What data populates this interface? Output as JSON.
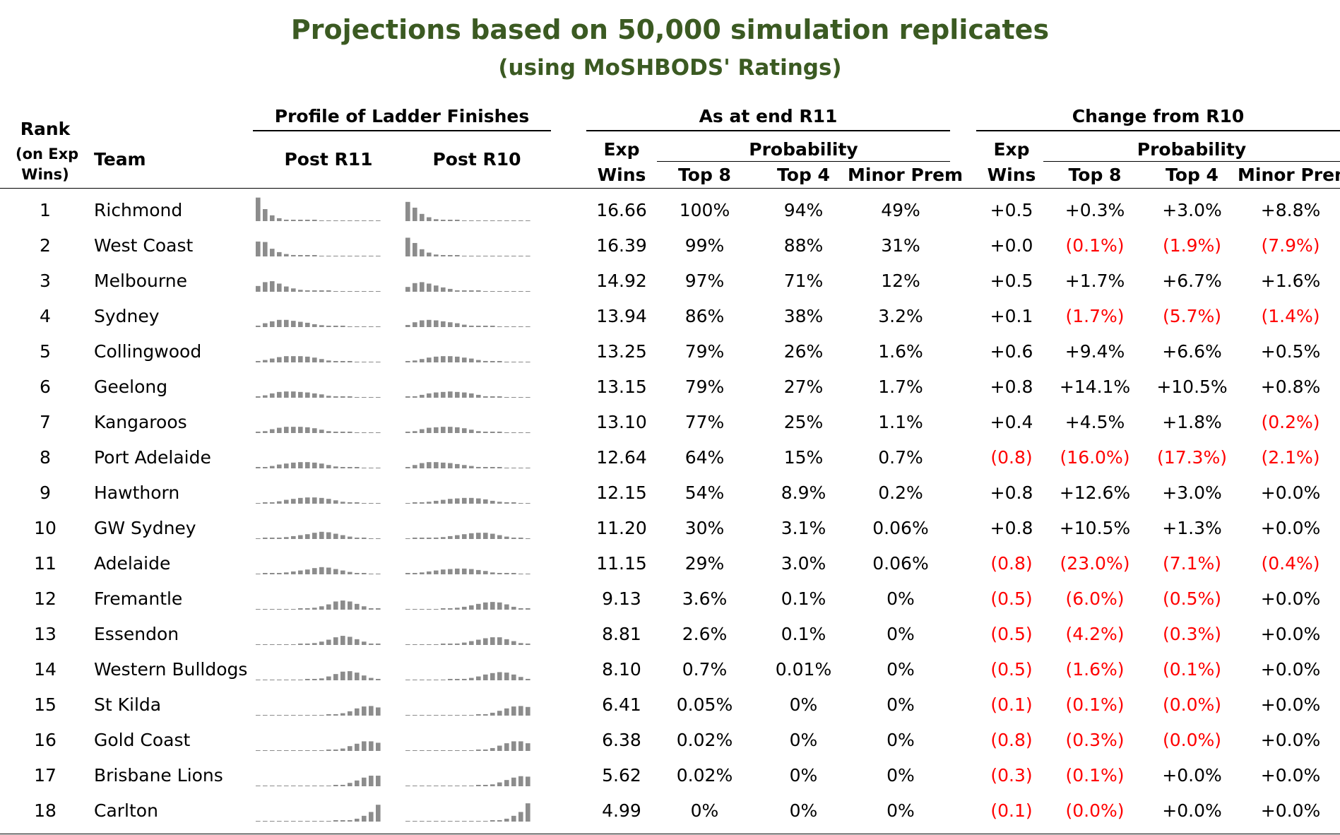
{
  "title": "Projections based on 50,000 simulation replicates",
  "subtitle": "(using MoSHBODS' Ratings)",
  "headers": {
    "rank": "Rank",
    "rank_sub1": "(on Exp",
    "rank_sub2": "Wins)",
    "team": "Team",
    "profile_group": "Profile of Ladder Finishes",
    "post_r11": "Post R11",
    "post_r10": "Post R10",
    "as_at_group": "As at end R11",
    "change_group": "Change from R10",
    "exp": "Exp",
    "wins": "Wins",
    "probability": "Probability",
    "top8": "Top 8",
    "top4": "Top 4",
    "minor_prem": "Minor Prem"
  },
  "colors": {
    "title": "#3b5a22",
    "negative": "#ff0000",
    "spark_bar": "#8c8c8c"
  },
  "chart_data": {
    "type": "table",
    "columns": [
      "Rank",
      "Team",
      "Exp Wins",
      "Top 8",
      "Top 4",
      "Minor Prem",
      "Change Exp Wins",
      "Change Top 8",
      "Change Top 4",
      "Change Minor Prem"
    ],
    "rows": [
      {
        "rank": "1",
        "team": "Richmond",
        "exp_wins": "16.66",
        "top8": "100%",
        "top4": "94%",
        "minor": "49%",
        "d_wins": "+0.5",
        "d_top8": "+0.3%",
        "d_top4": "+3.0%",
        "d_minor": "+8.8%"
      },
      {
        "rank": "2",
        "team": "West Coast",
        "exp_wins": "16.39",
        "top8": "99%",
        "top4": "88%",
        "minor": "31%",
        "d_wins": "+0.0",
        "d_top8": "(0.1%)",
        "d_top4": "(1.9%)",
        "d_minor": "(7.9%)"
      },
      {
        "rank": "3",
        "team": "Melbourne",
        "exp_wins": "14.92",
        "top8": "97%",
        "top4": "71%",
        "minor": "12%",
        "d_wins": "+0.5",
        "d_top8": "+1.7%",
        "d_top4": "+6.7%",
        "d_minor": "+1.6%"
      },
      {
        "rank": "4",
        "team": "Sydney",
        "exp_wins": "13.94",
        "top8": "86%",
        "top4": "38%",
        "minor": "3.2%",
        "d_wins": "+0.1",
        "d_top8": "(1.7%)",
        "d_top4": "(5.7%)",
        "d_minor": "(1.4%)"
      },
      {
        "rank": "5",
        "team": "Collingwood",
        "exp_wins": "13.25",
        "top8": "79%",
        "top4": "26%",
        "minor": "1.6%",
        "d_wins": "+0.6",
        "d_top8": "+9.4%",
        "d_top4": "+6.6%",
        "d_minor": "+0.5%"
      },
      {
        "rank": "6",
        "team": "Geelong",
        "exp_wins": "13.15",
        "top8": "79%",
        "top4": "27%",
        "minor": "1.7%",
        "d_wins": "+0.8",
        "d_top8": "+14.1%",
        "d_top4": "+10.5%",
        "d_minor": "+0.8%"
      },
      {
        "rank": "7",
        "team": "Kangaroos",
        "exp_wins": "13.10",
        "top8": "77%",
        "top4": "25%",
        "minor": "1.1%",
        "d_wins": "+0.4",
        "d_top8": "+4.5%",
        "d_top4": "+1.8%",
        "d_minor": "(0.2%)"
      },
      {
        "rank": "8",
        "team": "Port Adelaide",
        "exp_wins": "12.64",
        "top8": "64%",
        "top4": "15%",
        "minor": "0.7%",
        "d_wins": "(0.8)",
        "d_top8": "(16.0%)",
        "d_top4": "(17.3%)",
        "d_minor": "(2.1%)"
      },
      {
        "rank": "9",
        "team": "Hawthorn",
        "exp_wins": "12.15",
        "top8": "54%",
        "top4": "8.9%",
        "minor": "0.2%",
        "d_wins": "+0.8",
        "d_top8": "+12.6%",
        "d_top4": "+3.0%",
        "d_minor": "+0.0%"
      },
      {
        "rank": "10",
        "team": "GW Sydney",
        "exp_wins": "11.20",
        "top8": "30%",
        "top4": "3.1%",
        "minor": "0.06%",
        "d_wins": "+0.8",
        "d_top8": "+10.5%",
        "d_top4": "+1.3%",
        "d_minor": "+0.0%"
      },
      {
        "rank": "11",
        "team": "Adelaide",
        "exp_wins": "11.15",
        "top8": "29%",
        "top4": "3.0%",
        "minor": "0.06%",
        "d_wins": "(0.8)",
        "d_top8": "(23.0%)",
        "d_top4": "(7.1%)",
        "d_minor": "(0.4%)"
      },
      {
        "rank": "12",
        "team": "Fremantle",
        "exp_wins": "9.13",
        "top8": "3.6%",
        "top4": "0.1%",
        "minor": "0%",
        "d_wins": "(0.5)",
        "d_top8": "(6.0%)",
        "d_top4": "(0.5%)",
        "d_minor": "+0.0%"
      },
      {
        "rank": "13",
        "team": "Essendon",
        "exp_wins": "8.81",
        "top8": "2.6%",
        "top4": "0.1%",
        "minor": "0%",
        "d_wins": "(0.5)",
        "d_top8": "(4.2%)",
        "d_top4": "(0.3%)",
        "d_minor": "+0.0%"
      },
      {
        "rank": "14",
        "team": "Western Bulldogs",
        "exp_wins": "8.10",
        "top8": "0.7%",
        "top4": "0.01%",
        "minor": "0%",
        "d_wins": "(0.5)",
        "d_top8": "(1.6%)",
        "d_top4": "(0.1%)",
        "d_minor": "+0.0%"
      },
      {
        "rank": "15",
        "team": "St Kilda",
        "exp_wins": "6.41",
        "top8": "0.05%",
        "top4": "0%",
        "minor": "0%",
        "d_wins": "(0.1)",
        "d_top8": "(0.1%)",
        "d_top4": "(0.0%)",
        "d_minor": "+0.0%"
      },
      {
        "rank": "16",
        "team": "Gold Coast",
        "exp_wins": "6.38",
        "top8": "0.02%",
        "top4": "0%",
        "minor": "0%",
        "d_wins": "(0.8)",
        "d_top8": "(0.3%)",
        "d_top4": "(0.0%)",
        "d_minor": "+0.0%"
      },
      {
        "rank": "17",
        "team": "Brisbane Lions",
        "exp_wins": "5.62",
        "top8": "0.02%",
        "top4": "0%",
        "minor": "0%",
        "d_wins": "(0.3)",
        "d_top8": "(0.1%)",
        "d_top4": "+0.0%",
        "d_minor": "+0.0%"
      },
      {
        "rank": "18",
        "team": "Carlton",
        "exp_wins": "4.99",
        "top8": "0%",
        "top4": "0%",
        "minor": "0%",
        "d_wins": "(0.1)",
        "d_top8": "(0.0%)",
        "d_top4": "+0.0%",
        "d_minor": "+0.0%"
      }
    ],
    "ladder_profiles": {
      "description_positions": 18,
      "post_r11": [
        [
          0.49,
          0.25,
          0.12,
          0.06,
          0.03,
          0.02,
          0.01,
          0.01,
          0.005,
          0.003,
          0.001,
          0,
          0,
          0,
          0,
          0,
          0,
          0
        ],
        [
          0.31,
          0.3,
          0.16,
          0.09,
          0.05,
          0.03,
          0.02,
          0.01,
          0.005,
          0.003,
          0.001,
          0,
          0,
          0,
          0,
          0,
          0,
          0
        ],
        [
          0.12,
          0.2,
          0.22,
          0.17,
          0.11,
          0.07,
          0.04,
          0.03,
          0.02,
          0.01,
          0.005,
          0.002,
          0.001,
          0,
          0,
          0,
          0,
          0
        ],
        [
          0.03,
          0.08,
          0.12,
          0.15,
          0.15,
          0.13,
          0.11,
          0.09,
          0.06,
          0.04,
          0.02,
          0.01,
          0.005,
          0.002,
          0.001,
          0,
          0,
          0
        ],
        [
          0.016,
          0.05,
          0.08,
          0.11,
          0.13,
          0.13,
          0.13,
          0.12,
          0.1,
          0.07,
          0.04,
          0.02,
          0.01,
          0.005,
          0.002,
          0,
          0,
          0
        ],
        [
          0.017,
          0.05,
          0.09,
          0.12,
          0.13,
          0.13,
          0.12,
          0.11,
          0.09,
          0.07,
          0.04,
          0.02,
          0.01,
          0.005,
          0.002,
          0,
          0,
          0
        ],
        [
          0.011,
          0.04,
          0.08,
          0.11,
          0.13,
          0.13,
          0.13,
          0.12,
          0.1,
          0.07,
          0.04,
          0.02,
          0.01,
          0.005,
          0.002,
          0,
          0,
          0
        ],
        [
          0.007,
          0.02,
          0.05,
          0.08,
          0.1,
          0.12,
          0.13,
          0.13,
          0.12,
          0.1,
          0.07,
          0.04,
          0.02,
          0.01,
          0.004,
          0.001,
          0,
          0
        ],
        [
          0.002,
          0.01,
          0.03,
          0.05,
          0.08,
          0.1,
          0.12,
          0.13,
          0.13,
          0.12,
          0.1,
          0.07,
          0.04,
          0.02,
          0.01,
          0.003,
          0,
          0
        ],
        [
          0.001,
          0.005,
          0.01,
          0.02,
          0.04,
          0.06,
          0.08,
          0.1,
          0.13,
          0.15,
          0.14,
          0.11,
          0.08,
          0.05,
          0.02,
          0.01,
          0.003,
          0
        ],
        [
          0.001,
          0.005,
          0.01,
          0.02,
          0.04,
          0.06,
          0.08,
          0.1,
          0.13,
          0.15,
          0.14,
          0.11,
          0.08,
          0.05,
          0.02,
          0.01,
          0.003,
          0
        ],
        [
          0,
          0,
          0,
          0,
          0.001,
          0.003,
          0.01,
          0.02,
          0.04,
          0.07,
          0.11,
          0.17,
          0.19,
          0.17,
          0.12,
          0.07,
          0.03,
          0.01
        ],
        [
          0,
          0,
          0,
          0,
          0,
          0.002,
          0.008,
          0.02,
          0.04,
          0.07,
          0.11,
          0.16,
          0.19,
          0.17,
          0.12,
          0.07,
          0.03,
          0.01
        ],
        [
          0,
          0,
          0,
          0,
          0,
          0,
          0.001,
          0.005,
          0.02,
          0.04,
          0.08,
          0.13,
          0.18,
          0.19,
          0.16,
          0.1,
          0.05,
          0.02
        ],
        [
          0,
          0,
          0,
          0,
          0,
          0,
          0,
          0,
          0,
          0.001,
          0.005,
          0.02,
          0.05,
          0.09,
          0.15,
          0.19,
          0.2,
          0.17
        ],
        [
          0,
          0,
          0,
          0,
          0,
          0,
          0,
          0,
          0,
          0.001,
          0.005,
          0.02,
          0.05,
          0.1,
          0.15,
          0.2,
          0.2,
          0.17
        ],
        [
          0,
          0,
          0,
          0,
          0,
          0,
          0,
          0,
          0,
          0,
          0.002,
          0.01,
          0.03,
          0.07,
          0.12,
          0.18,
          0.22,
          0.22
        ],
        [
          0,
          0,
          0,
          0,
          0,
          0,
          0,
          0,
          0,
          0,
          0.001,
          0.005,
          0.01,
          0.03,
          0.06,
          0.12,
          0.2,
          0.35
        ]
      ],
      "post_r10": [
        [
          0.4,
          0.28,
          0.15,
          0.08,
          0.04,
          0.02,
          0.01,
          0.005,
          0.003,
          0.001,
          0,
          0,
          0,
          0,
          0,
          0,
          0,
          0
        ],
        [
          0.39,
          0.28,
          0.15,
          0.08,
          0.04,
          0.02,
          0.01,
          0.005,
          0.003,
          0.001,
          0,
          0,
          0,
          0,
          0,
          0,
          0,
          0
        ],
        [
          0.1,
          0.18,
          0.2,
          0.17,
          0.13,
          0.09,
          0.06,
          0.03,
          0.02,
          0.01,
          0.005,
          0.002,
          0.001,
          0,
          0,
          0,
          0,
          0
        ],
        [
          0.044,
          0.1,
          0.14,
          0.15,
          0.14,
          0.12,
          0.1,
          0.08,
          0.05,
          0.03,
          0.02,
          0.01,
          0.005,
          0.002,
          0,
          0,
          0,
          0
        ],
        [
          0.011,
          0.04,
          0.07,
          0.1,
          0.12,
          0.13,
          0.13,
          0.12,
          0.1,
          0.08,
          0.05,
          0.03,
          0.01,
          0.005,
          0.002,
          0,
          0,
          0
        ],
        [
          0.009,
          0.03,
          0.06,
          0.09,
          0.11,
          0.12,
          0.13,
          0.12,
          0.11,
          0.09,
          0.06,
          0.03,
          0.02,
          0.01,
          0.003,
          0,
          0,
          0
        ],
        [
          0.013,
          0.04,
          0.08,
          0.11,
          0.12,
          0.13,
          0.13,
          0.12,
          0.1,
          0.07,
          0.04,
          0.02,
          0.01,
          0.005,
          0.002,
          0,
          0,
          0
        ],
        [
          0.028,
          0.07,
          0.11,
          0.13,
          0.13,
          0.12,
          0.11,
          0.09,
          0.07,
          0.05,
          0.03,
          0.02,
          0.01,
          0.005,
          0.002,
          0,
          0,
          0
        ],
        [
          0.002,
          0.008,
          0.02,
          0.04,
          0.06,
          0.08,
          0.1,
          0.11,
          0.12,
          0.12,
          0.11,
          0.09,
          0.06,
          0.04,
          0.02,
          0.01,
          0.003,
          0
        ],
        [
          0.001,
          0.004,
          0.01,
          0.015,
          0.03,
          0.04,
          0.06,
          0.08,
          0.1,
          0.12,
          0.13,
          0.13,
          0.11,
          0.08,
          0.05,
          0.02,
          0.01,
          0.002
        ],
        [
          0.005,
          0.02,
          0.04,
          0.06,
          0.08,
          0.1,
          0.11,
          0.12,
          0.12,
          0.11,
          0.09,
          0.07,
          0.04,
          0.02,
          0.01,
          0.005,
          0.002,
          0
        ],
        [
          0,
          0,
          0,
          0.001,
          0.002,
          0.006,
          0.02,
          0.04,
          0.06,
          0.09,
          0.12,
          0.15,
          0.16,
          0.15,
          0.11,
          0.06,
          0.03,
          0.01
        ],
        [
          0,
          0,
          0,
          0,
          0.001,
          0.004,
          0.015,
          0.03,
          0.05,
          0.08,
          0.11,
          0.14,
          0.16,
          0.16,
          0.12,
          0.08,
          0.04,
          0.01
        ],
        [
          0,
          0,
          0,
          0,
          0,
          0.001,
          0.005,
          0.01,
          0.03,
          0.05,
          0.08,
          0.12,
          0.15,
          0.17,
          0.16,
          0.12,
          0.07,
          0.03
        ],
        [
          0,
          0,
          0,
          0,
          0,
          0,
          0,
          0,
          0.001,
          0.002,
          0.01,
          0.03,
          0.06,
          0.1,
          0.15,
          0.19,
          0.2,
          0.18
        ],
        [
          0,
          0,
          0,
          0,
          0,
          0,
          0,
          0,
          0.001,
          0.003,
          0.01,
          0.03,
          0.06,
          0.11,
          0.16,
          0.2,
          0.2,
          0.16
        ],
        [
          0,
          0,
          0,
          0,
          0,
          0,
          0,
          0,
          0,
          0.001,
          0.004,
          0.015,
          0.04,
          0.08,
          0.13,
          0.18,
          0.21,
          0.2
        ],
        [
          0,
          0,
          0,
          0,
          0,
          0,
          0,
          0,
          0,
          0,
          0.001,
          0.003,
          0.01,
          0.03,
          0.06,
          0.12,
          0.2,
          0.38
        ]
      ]
    }
  }
}
